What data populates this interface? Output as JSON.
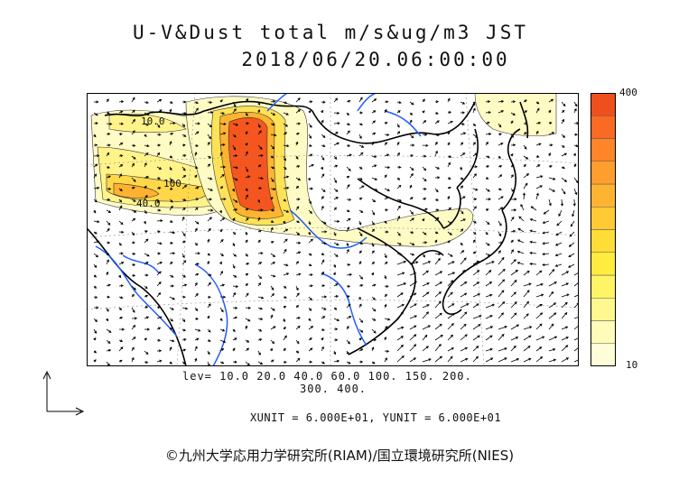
{
  "title": {
    "line1": "U-V&Dust total m/s&ug/m3 JST",
    "line2": "2018/06/20.06:00:00"
  },
  "colorbar": {
    "max_label": "400",
    "min_label": "10",
    "colors": [
      "#fffdd8",
      "#fffbb8",
      "#fff88f",
      "#fff466",
      "#ffec3f",
      "#ffdc36",
      "#ffca34",
      "#ffb431",
      "#ff9e2c",
      "#ff8528",
      "#fb6a23",
      "#ef4f1d"
    ]
  },
  "levels": {
    "line1": "lev= 10.0 20.0 40.0 60.0 100. 150. 200.",
    "line2": "300. 400."
  },
  "contour_labels": {
    "a": "10.0",
    "b": "100",
    "c": "40.0"
  },
  "units_text": "XUNIT = 6.000E+01, YUNIT = 6.000E+01",
  "credit": "©九州大学応用力学研究所(RIAM)/国立環境研究所(NIES)",
  "colors": {
    "coast": "#000000",
    "river": "#1f5bff",
    "grid": "#8c8c8c"
  }
}
